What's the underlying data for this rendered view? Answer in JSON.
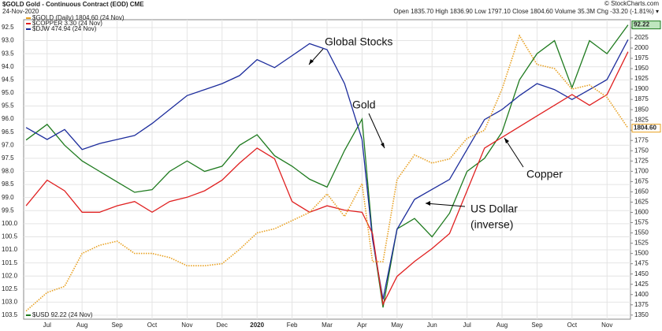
{
  "chart_data": {
    "type": "line",
    "title": "$GOLD Gold - Continuous Contract (EOD) CME",
    "subtitle": "24-Nov-2020",
    "quote": "Open 1835.70  High 1836.90  Low 1797.10  Close 1804.60  Volume 35.3M  Chg -33.20 (-1.81%) ▾",
    "credit": "© StockCharts.com",
    "annotations": [
      {
        "text": "Global Stocks"
      },
      {
        "text": "Gold"
      },
      {
        "text": "Copper"
      },
      {
        "text": "US Dollar"
      },
      {
        "text": "(inverse)"
      }
    ],
    "x": [
      -0.6,
      0,
      0.5,
      1,
      1.5,
      2,
      2.5,
      3,
      3.5,
      4,
      4.5,
      5,
      5.5,
      6,
      6.5,
      7,
      7.5,
      8,
      8.5,
      9,
      9.3,
      9.6,
      10,
      10.5,
      11,
      11.5,
      12,
      12.5,
      13,
      13.5,
      14,
      14.5,
      15,
      15.5,
      16,
      16.6
    ],
    "xlim": [
      -0.67,
      16.67
    ],
    "xticks": [
      {
        "value": 0,
        "label": "Jul"
      },
      {
        "value": 1,
        "label": "Aug"
      },
      {
        "value": 2,
        "label": "Sep"
      },
      {
        "value": 3,
        "label": "Oct"
      },
      {
        "value": 4,
        "label": "Nov"
      },
      {
        "value": 5,
        "label": "Dec"
      },
      {
        "value": 6,
        "label": "2020"
      },
      {
        "value": 7,
        "label": "Feb"
      },
      {
        "value": 8,
        "label": "Mar"
      },
      {
        "value": 9,
        "label": "Apr"
      },
      {
        "value": 10,
        "label": "May"
      },
      {
        "value": 11,
        "label": "Jun"
      },
      {
        "value": 12,
        "label": "Jul"
      },
      {
        "value": 13,
        "label": "Aug"
      },
      {
        "value": 14,
        "label": "Sep"
      },
      {
        "value": 15,
        "label": "Oct"
      },
      {
        "value": 16,
        "label": "Nov"
      }
    ],
    "ylim": [
      103.65,
      92.2
    ],
    "yticks": [
      92.5,
      {
        "value": 93,
        "label": "93.0"
      },
      93.5,
      {
        "value": 94,
        "label": "94.0"
      },
      94.5,
      {
        "value": 95,
        "label": "95.0"
      },
      95.5,
      {
        "value": 96,
        "label": "96.0"
      },
      96.5,
      {
        "value": 97,
        "label": "97.0"
      },
      97.5,
      {
        "value": 98,
        "label": "98.0"
      },
      98.5,
      {
        "value": 99,
        "label": "99.0"
      },
      99.5,
      {
        "value": 100,
        "label": "100.0"
      },
      100.5,
      {
        "value": 101,
        "label": "101.0"
      },
      101.5,
      {
        "value": 102,
        "label": "102.0"
      },
      102.5,
      {
        "value": 103,
        "label": "103.0"
      },
      103.5
    ],
    "y2lim": [
      1340,
      2069
    ],
    "y2ticks": [
      1350,
      1375,
      1400,
      1425,
      1450,
      1475,
      1500,
      1525,
      1550,
      1575,
      1600,
      1625,
      1650,
      1675,
      1700,
      1725,
      1750,
      1775,
      1800,
      1825,
      1850,
      1875,
      1900,
      1925,
      1950,
      1975,
      2000,
      2025,
      2050
    ],
    "grid": true,
    "series": [
      {
        "name": "$GOLD (Daily) 1804.60 (24 Nov)",
        "color": "#e8a020",
        "axis": "y2",
        "dashed": true,
        "last_label": "1804.60",
        "values": [
          1360,
          1405,
          1420,
          1500,
          1520,
          1530,
          1500,
          1500,
          1490,
          1470,
          1470,
          1475,
          1510,
          1550,
          1560,
          1580,
          1600,
          1645,
          1590,
          1670,
          1480,
          1480,
          1680,
          1740,
          1720,
          1730,
          1780,
          1800,
          1900,
          2030,
          1960,
          1950,
          1900,
          1910,
          1880,
          1805
        ]
      },
      {
        "name": "$COPPER 3.30 (24 Nov)",
        "color": "#e02020",
        "ylim": [
          2.05,
          3.45
        ],
        "values": [
          2.58,
          2.7,
          2.65,
          2.55,
          2.55,
          2.58,
          2.6,
          2.55,
          2.6,
          2.62,
          2.65,
          2.7,
          2.78,
          2.85,
          2.8,
          2.6,
          2.55,
          2.58,
          2.56,
          2.55,
          2.45,
          2.12,
          2.25,
          2.32,
          2.38,
          2.45,
          2.65,
          2.85,
          2.9,
          2.95,
          3.0,
          3.05,
          3.1,
          3.05,
          3.1,
          3.3
        ]
      },
      {
        "name": "$DJW 474.94 (24 Nov)",
        "color": "#1c2c9c",
        "ylim": [
          340,
          490
        ],
        "values": [
          436,
          430,
          435,
          425,
          428,
          430,
          432,
          438,
          445,
          452,
          455,
          458,
          462,
          470,
          466,
          472,
          478,
          475,
          458,
          430,
          380,
          350,
          385,
          400,
          405,
          410,
          425,
          440,
          445,
          452,
          458,
          455,
          450,
          455,
          460,
          480
        ]
      },
      {
        "name": "$USD 92.22 (24 Nov)",
        "color": "#1e7a1e",
        "last_label": "92.22",
        "values": [
          96.8,
          96.2,
          97.0,
          97.6,
          98.0,
          98.4,
          98.8,
          98.7,
          98.0,
          97.6,
          98.0,
          97.8,
          97.0,
          96.6,
          97.4,
          97.8,
          98.3,
          98.6,
          97.2,
          96.0,
          100.5,
          103.2,
          100.2,
          99.8,
          100.5,
          99.6,
          98.0,
          97.5,
          96.5,
          94.5,
          93.5,
          93.0,
          94.8,
          93.0,
          93.5,
          92.4
        ]
      }
    ]
  }
}
